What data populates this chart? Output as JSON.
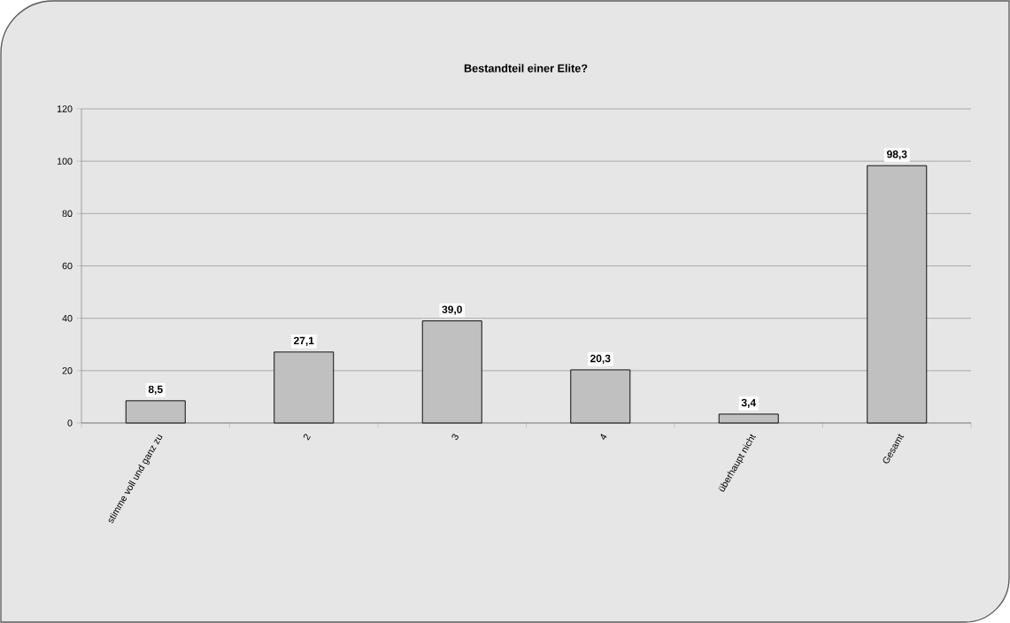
{
  "chart_data": {
    "type": "bar",
    "title": "Bestandteil einer Elite?",
    "categories": [
      "stimme voll und ganz zu",
      "2",
      "3",
      "4",
      "überhaupt nicht",
      "Gesamt"
    ],
    "values": [
      8.5,
      27.1,
      39.0,
      20.3,
      3.4,
      98.3
    ],
    "value_labels": [
      "8,5",
      "27,1",
      "39,0",
      "20,3",
      "3,4",
      "98,3"
    ],
    "color": "#c0c0c0",
    "ylim": [
      0,
      120
    ],
    "yticks": [
      0,
      20,
      40,
      60,
      80,
      100,
      120
    ],
    "grid": "y"
  }
}
